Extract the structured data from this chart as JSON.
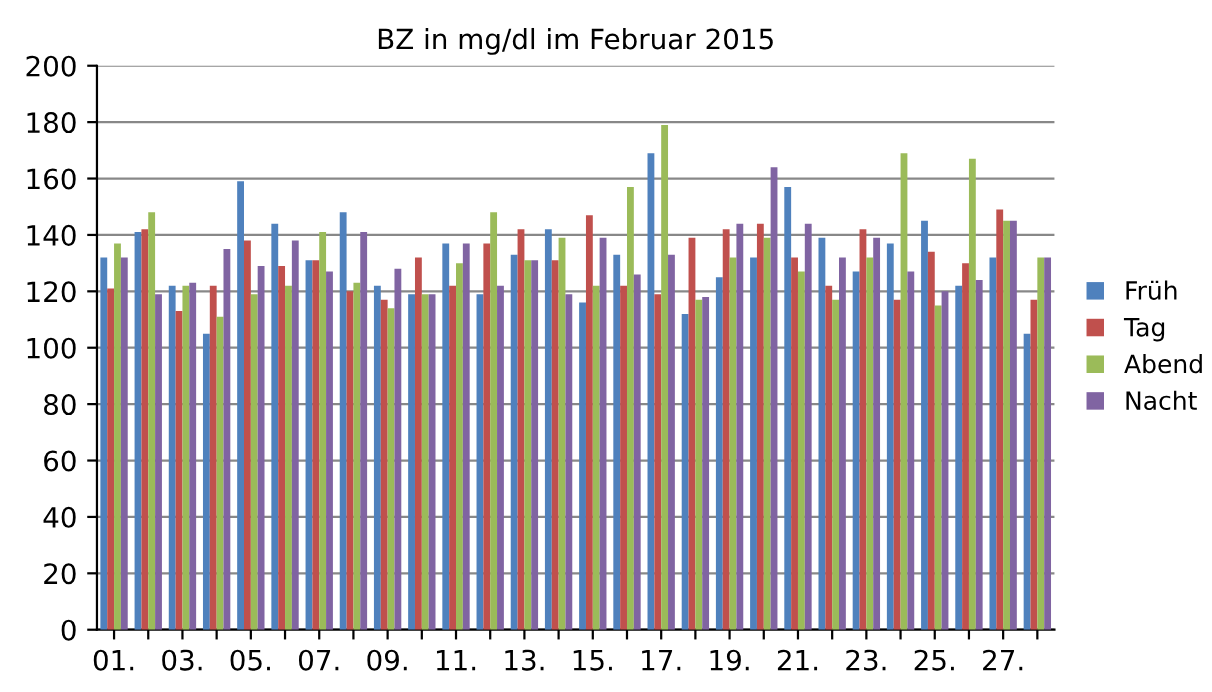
{
  "chart_data": {
    "type": "bar",
    "title": "BZ in mg/dl im Februar 2015",
    "categories": [
      "01.",
      null,
      "03.",
      null,
      "05.",
      null,
      "07.",
      null,
      "09.",
      null,
      "11.",
      null,
      "13.",
      null,
      "15.",
      null,
      "17.",
      null,
      "19.",
      null,
      "21.",
      null,
      "23.",
      null,
      "25.",
      null,
      "27.",
      null
    ],
    "series": [
      {
        "name": "Früh",
        "color": "#4f81bd",
        "values": [
          132,
          141,
          122,
          105,
          159,
          144,
          131,
          148,
          122,
          119,
          137,
          119,
          133,
          142,
          116,
          133,
          169,
          112,
          125,
          132,
          157,
          139,
          127,
          137,
          145,
          122,
          132,
          105
        ]
      },
      {
        "name": "Tag",
        "color": "#c0504d",
        "values": [
          121,
          142,
          113,
          122,
          138,
          129,
          131,
          120,
          117,
          132,
          122,
          137,
          142,
          131,
          147,
          122,
          119,
          139,
          142,
          144,
          132,
          122,
          142,
          117,
          134,
          130,
          149,
          117
        ]
      },
      {
        "name": "Abend",
        "color": "#9bbb59",
        "values": [
          137,
          148,
          122,
          111,
          119,
          122,
          141,
          123,
          114,
          119,
          130,
          148,
          131,
          139,
          122,
          157,
          179,
          117,
          132,
          139,
          127,
          117,
          132,
          169,
          115,
          167,
          145,
          132
        ]
      },
      {
        "name": "Nacht",
        "color": "#8064a2",
        "values": [
          132,
          119,
          123,
          135,
          129,
          138,
          127,
          141,
          128,
          119,
          137,
          122,
          131,
          119,
          139,
          126,
          133,
          118,
          144,
          164,
          144,
          132,
          139,
          127,
          120,
          124,
          145,
          132
        ]
      }
    ],
    "ylim": [
      0,
      200
    ],
    "yticks": [
      0,
      20,
      40,
      60,
      80,
      100,
      120,
      140,
      160,
      180,
      200
    ],
    "grid": "y",
    "legend": "right"
  }
}
